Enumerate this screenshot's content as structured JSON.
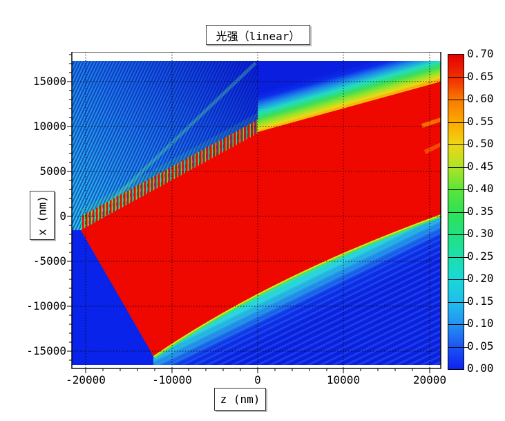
{
  "figure": {
    "title": "光强（linear）",
    "x_axis": {
      "label": "z (nm)",
      "ticks": [
        "-20000",
        "-10000",
        "0",
        "10000",
        "20000"
      ]
    },
    "y_axis": {
      "label": "x (nm)",
      "ticks": [
        "15000",
        "10000",
        "5000",
        "0",
        "-5000",
        "-10000",
        "-15000"
      ]
    },
    "colorbar": {
      "ticks": [
        "0.70",
        "0.65",
        "0.60",
        "0.55",
        "0.50",
        "0.45",
        "0.40",
        "0.35",
        "0.30",
        "0.25",
        "0.20",
        "0.15",
        "0.10",
        "0.05",
        "0.00"
      ]
    }
  },
  "chart_data": {
    "type": "heatmap",
    "title": "光强（linear）",
    "xlabel": "z (nm)",
    "ylabel": "x (nm)",
    "xlim": [
      -21600,
      21300
    ],
    "ylim": [
      -16900,
      18300
    ],
    "x_major_ticks": [
      -20000,
      -10000,
      0,
      10000,
      20000
    ],
    "y_major_ticks": [
      -15000,
      -10000,
      -5000,
      0,
      5000,
      10000,
      15000
    ],
    "grid": true,
    "grid_style": "black dotted at major ticks",
    "colormap": "jet",
    "value_range": [
      0.0,
      0.7
    ],
    "colorbar_ticks": [
      0.7,
      0.65,
      0.6,
      0.55,
      0.5,
      0.45,
      0.4,
      0.35,
      0.3,
      0.25,
      0.2,
      0.15,
      0.1,
      0.05,
      0.0
    ],
    "colors": {
      "saturated_red": "#EE0800",
      "background_blue": "#0923EA",
      "edge_yellow": "#D8E81E"
    },
    "features": {
      "saturated_beam_polygon": {
        "units": "nm",
        "vertices_z_x": [
          [
            -20550,
            -1550
          ],
          [
            0,
            9400
          ],
          [
            21300,
            15000
          ],
          [
            21300,
            200
          ],
          [
            -12100,
            -15550
          ]
        ],
        "value": ">=0.70 (clipped red wedge of refracted beam)"
      },
      "shadow_region_polygon": {
        "units": "nm",
        "vertices_z_x": [
          [
            -20550,
            -1550
          ],
          [
            -12100,
            -15550
          ],
          [
            -12100,
            -16550
          ],
          [
            -21600,
            -16550
          ],
          [
            -21600,
            -1800
          ]
        ],
        "value": "~0.00-0.03 (dark blue geometric shadow)"
      },
      "interference_fringe_region": {
        "location": "upper-left, z<0, above beam top edge",
        "orientation_deg_from_horizontal": 65,
        "fringe_period_nm": 300,
        "value_range": [
          0.05,
          0.45
        ],
        "note": "fringes terminate abruptly at z=0; sawtooth red/green teeth along beam top edge"
      },
      "upper_beam_edge_gradient": {
        "from_z_x": [
          0,
          9400
        ],
        "to_z_x": [
          21300,
          15000
        ],
        "description": "smooth falloff red-orange-yellow-green-cyan-blue above edge, ~4000 nm wide"
      },
      "lower_beam_edge_gradient": {
        "from_z_x": [
          -12100,
          -15550
        ],
        "to_z_x": [
          21300,
          200
        ],
        "description": "slightly curved edge; yellow-green rim then cyan-blue falloff with faint parallel fringes below"
      }
    }
  }
}
